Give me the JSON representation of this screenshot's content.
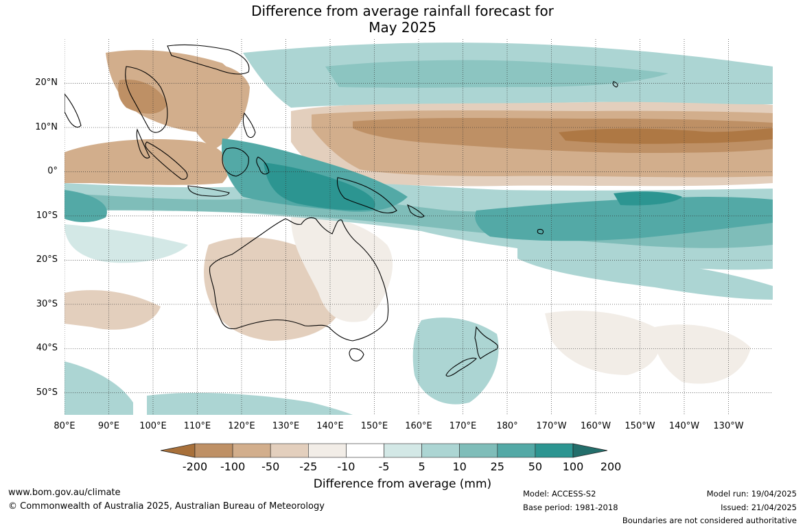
{
  "title": {
    "line1": "Difference from average rainfall forecast for",
    "line2": "May 2025"
  },
  "map": {
    "projection": "equirectangular",
    "lon_range": [
      80,
      240
    ],
    "lat_range": [
      -55,
      30
    ],
    "lat_ticks": [
      {
        "value": 20,
        "label": "20°N"
      },
      {
        "value": 10,
        "label": "10°N"
      },
      {
        "value": 0,
        "label": "0°"
      },
      {
        "value": -10,
        "label": "10°S"
      },
      {
        "value": -20,
        "label": "20°S"
      },
      {
        "value": -30,
        "label": "30°S"
      },
      {
        "value": -40,
        "label": "40°S"
      },
      {
        "value": -50,
        "label": "50°S"
      }
    ],
    "lon_ticks": [
      {
        "value": 80,
        "label": "80°E"
      },
      {
        "value": 90,
        "label": "90°E"
      },
      {
        "value": 100,
        "label": "100°E"
      },
      {
        "value": 110,
        "label": "110°E"
      },
      {
        "value": 120,
        "label": "120°E"
      },
      {
        "value": 130,
        "label": "130°E"
      },
      {
        "value": 140,
        "label": "140°E"
      },
      {
        "value": 150,
        "label": "150°E"
      },
      {
        "value": 160,
        "label": "160°E"
      },
      {
        "value": 170,
        "label": "170°E"
      },
      {
        "value": 180,
        "label": "180°"
      },
      {
        "value": 190,
        "label": "170°W"
      },
      {
        "value": 200,
        "label": "160°W"
      },
      {
        "value": 210,
        "label": "150°W"
      },
      {
        "value": 220,
        "label": "140°W"
      },
      {
        "value": 230,
        "label": "130°W"
      }
    ]
  },
  "legend": {
    "title": "Difference from average (mm)",
    "ticks": [
      "-200",
      "-100",
      "-50",
      "-25",
      "-10",
      "-5",
      "5",
      "10",
      "25",
      "50",
      "100",
      "200"
    ],
    "colors": [
      "#a8703a",
      "#be9065",
      "#d2ae8c",
      "#e3cfbd",
      "#f2ede7",
      "#ffffff",
      "#d3e8e6",
      "#acd5d3",
      "#7fbdb9",
      "#53a9a6",
      "#2c9591",
      "#236e6b"
    ]
  },
  "footer": {
    "website": "www.bom.gov.au/climate",
    "copyright": "© Commonwealth of Australia 2025, Australian Bureau of Meteorology",
    "model": "Model: ACCESS-S2",
    "base_period": "Base period: 1981-2018",
    "model_run": "Model run: 19/04/2025",
    "issued": "Issued: 21/04/2025",
    "disclaimer": "Boundaries are not considered authoritative"
  }
}
